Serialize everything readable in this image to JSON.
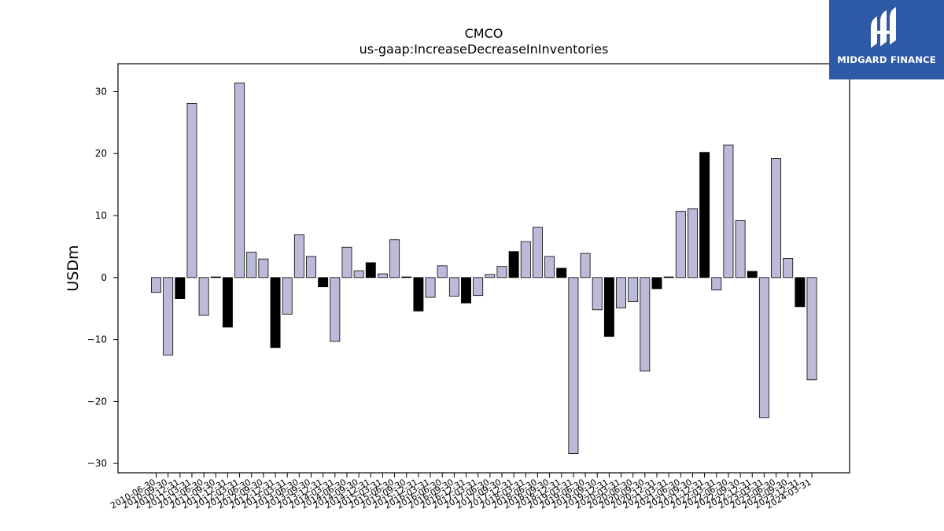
{
  "chart_data": {
    "type": "bar",
    "title": "CMCO",
    "subtitle": "us-gaap:IncreaseDecreaseInInventories",
    "xlabel": "",
    "ylabel": "USDm",
    "ylim": [
      -31.5,
      34.5
    ],
    "yticks": [
      -30,
      -20,
      -10,
      0,
      10,
      20,
      30
    ],
    "grid": false,
    "categories": [
      "2010-06-30",
      "2010-09-30",
      "2010-12-31",
      "2011-03-31",
      "2011-06-30",
      "2011-09-30",
      "2011-12-31",
      "2012-03-31",
      "2012-06-30",
      "2012-09-30",
      "2012-12-31",
      "2013-03-31",
      "2013-06-30",
      "2013-09-30",
      "2013-12-31",
      "2014-03-31",
      "2014-06-30",
      "2014-09-30",
      "2014-12-31",
      "2015-03-31",
      "2015-06-30",
      "2015-09-30",
      "2015-12-31",
      "2016-03-31",
      "2016-06-30",
      "2016-09-30",
      "2016-12-31",
      "2017-03-31",
      "2017-06-30",
      "2017-09-30",
      "2017-12-31",
      "2018-03-31",
      "2018-06-30",
      "2018-09-30",
      "2018-12-31",
      "2019-03-31",
      "2019-06-30",
      "2019-09-30",
      "2019-12-31",
      "2020-03-31",
      "2020-06-30",
      "2020-09-30",
      "2020-12-31",
      "2021-03-31",
      "2021-06-30",
      "2021-09-30",
      "2021-12-31",
      "2022-03-31",
      "2022-06-30",
      "2022-09-30",
      "2022-12-31",
      "2023-03-31",
      "2023-06-30",
      "2023-09-30",
      "2023-12-31",
      "2024-03-31"
    ],
    "values": [
      -2.4,
      -12.5,
      -3.4,
      28.1,
      -6.1,
      0.1,
      -8.0,
      31.4,
      4.1,
      3.0,
      -11.3,
      -5.9,
      6.9,
      3.4,
      -1.5,
      -10.3,
      4.9,
      1.1,
      2.4,
      0.6,
      6.1,
      0.1,
      -5.4,
      -3.2,
      1.9,
      -3.0,
      -4.1,
      -2.9,
      0.5,
      1.8,
      4.2,
      5.8,
      8.1,
      3.4,
      1.5,
      -28.4,
      3.9,
      -5.2,
      -9.5,
      -4.9,
      -3.9,
      -15.1,
      -1.8,
      0.1,
      10.7,
      11.1,
      20.2,
      -2.0,
      21.4,
      9.2,
      1.0,
      -22.6,
      19.2,
      3.1,
      -4.7,
      -16.5
    ],
    "fill_colors": {
      "default": "#bcbad9",
      "q4": "#000000"
    },
    "edge_color": "#000000"
  },
  "logo": {
    "text": "MIDGARD FINANCE",
    "icon": "midgard-logo-icon",
    "background": "#2f5aa8"
  }
}
